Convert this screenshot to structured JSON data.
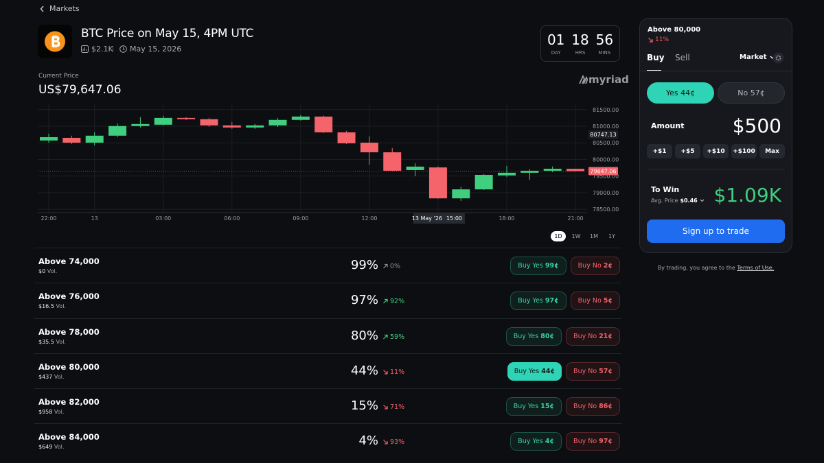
{
  "nav": {
    "back": "Markets"
  },
  "header": {
    "title": "BTC Price on May 15, 4PM UTC",
    "volume": "$2.1K",
    "date": "May 15, 2026"
  },
  "countdown": [
    {
      "value": "01",
      "unit": "DAY"
    },
    {
      "value": "18",
      "unit": "HRS"
    },
    {
      "value": "56",
      "unit": "MINS"
    }
  ],
  "price": {
    "label": "Current Price",
    "value": "US$79,647.06"
  },
  "brand": "myriad",
  "chart_data": {
    "type": "candlestick",
    "categories": [
      "22:00",
      null,
      "13",
      null,
      null,
      "03:00",
      null,
      null,
      "06:00",
      null,
      null,
      "09:00",
      null,
      null,
      "12:00",
      null,
      null,
      "15:00",
      null,
      null,
      "18:00",
      null,
      null,
      "21:00"
    ],
    "open": [
      80570,
      80650,
      80505,
      80715,
      81005,
      81045,
      81250,
      81210,
      81025,
      80960,
      81025,
      81190,
      81290,
      80815,
      80505,
      80215,
      79680,
      79760,
      78830,
      79100,
      79520,
      79600,
      79660,
      79720
    ],
    "high": [
      80775,
      80715,
      80820,
      81085,
      81270,
      81315,
      81270,
      81250,
      81130,
      81065,
      81250,
      81335,
      81315,
      80860,
      80695,
      80345,
      79890,
      79790,
      79180,
      79560,
      79805,
      79705,
      79790,
      79720
    ],
    "low": [
      80505,
      80465,
      80425,
      80670,
      80960,
      81025,
      81190,
      80980,
      80920,
      80920,
      80980,
      81170,
      80795,
      80465,
      79845,
      79640,
      79495,
      78820,
      78750,
      79080,
      79470,
      79390,
      79615,
      79640
    ],
    "close": [
      80670,
      80505,
      80715,
      81005,
      81065,
      81250,
      81210,
      81025,
      80960,
      81025,
      81190,
      81290,
      80815,
      80485,
      80215,
      79660,
      79785,
      78830,
      79100,
      79535,
      79600,
      79660,
      79720,
      79647.06
    ],
    "up_color": "#3fcf7e",
    "down_color": "#f5636b",
    "ylim": [
      78400,
      81660
    ],
    "yticks": [
      {
        "value": 81500,
        "label": "81500.00"
      },
      {
        "value": 81000,
        "label": "81000.00"
      },
      {
        "value": 80500,
        "label": "80500.00"
      },
      {
        "value": 80000,
        "label": "80000.00"
      },
      {
        "value": 79500,
        "label": "79500.00"
      },
      {
        "value": 79000,
        "label": "79000.00"
      },
      {
        "value": 78500,
        "label": "78500.00"
      }
    ],
    "grid": true,
    "price_marker": {
      "value": 79647.06,
      "label": "79647.06"
    },
    "hover_marker": {
      "value": 80747.13,
      "label": "80747.13"
    },
    "crosshair": {
      "date": "13 May '26",
      "at": "15:00"
    }
  },
  "timeframes": {
    "options": [
      "1D",
      "1W",
      "1M",
      "1Y"
    ],
    "active": "1D"
  },
  "markets": [
    {
      "name": "Above 74,000",
      "volume": "$0",
      "volume_suffix": "Vol.",
      "chance": "99%",
      "change": "0%",
      "trend": "flat",
      "selected": false,
      "buy_yes": {
        "label": "Buy Yes",
        "price": "99¢"
      },
      "buy_no": {
        "label": "Buy No",
        "price": "2¢"
      }
    },
    {
      "name": "Above 76,000",
      "volume": "$16.5",
      "volume_suffix": "Vol.",
      "chance": "97%",
      "change": "92%",
      "trend": "up",
      "selected": false,
      "buy_yes": {
        "label": "Buy Yes",
        "price": "97¢"
      },
      "buy_no": {
        "label": "Buy No",
        "price": "5¢"
      }
    },
    {
      "name": "Above 78,000",
      "volume": "$35.5",
      "volume_suffix": "Vol.",
      "chance": "80%",
      "change": "59%",
      "trend": "up",
      "selected": false,
      "buy_yes": {
        "label": "Buy Yes",
        "price": "80¢"
      },
      "buy_no": {
        "label": "Buy No",
        "price": "21¢"
      }
    },
    {
      "name": "Above 80,000",
      "volume": "$437",
      "volume_suffix": "Vol.",
      "chance": "44%",
      "change": "11%",
      "trend": "down",
      "selected": true,
      "buy_yes": {
        "label": "Buy Yes",
        "price": "44¢"
      },
      "buy_no": {
        "label": "Buy No",
        "price": "57¢"
      }
    },
    {
      "name": "Above 82,000",
      "volume": "$958",
      "volume_suffix": "Vol.",
      "chance": "15%",
      "change": "71%",
      "trend": "down",
      "selected": false,
      "buy_yes": {
        "label": "Buy Yes",
        "price": "15¢"
      },
      "buy_no": {
        "label": "Buy No",
        "price": "86¢"
      }
    },
    {
      "name": "Above 84,000",
      "volume": "$649",
      "volume_suffix": "Vol.",
      "chance": "4%",
      "change": "93%",
      "trend": "down",
      "selected": false,
      "buy_yes": {
        "label": "Buy Yes",
        "price": "4¢"
      },
      "buy_no": {
        "label": "Buy No",
        "price": "97¢"
      }
    }
  ],
  "trade_panel": {
    "market": "Above 80,000",
    "change": "11%",
    "tabs": [
      "Buy",
      "Sell"
    ],
    "order_type": "Market",
    "yes": "Yes 44¢",
    "no": "No 57¢",
    "amount_label": "Amount",
    "amount": "$500",
    "quick_amounts": [
      "+$1",
      "+$5",
      "+$10",
      "+$100",
      "Max"
    ],
    "to_win_label": "To Win",
    "avg_price_label": "Avg. Price",
    "avg_price": "$0.46",
    "to_win": "$1.09K",
    "cta": "Sign up to trade",
    "disclaimer": "By trading, you agree to the",
    "terms": "Terms of Use."
  }
}
